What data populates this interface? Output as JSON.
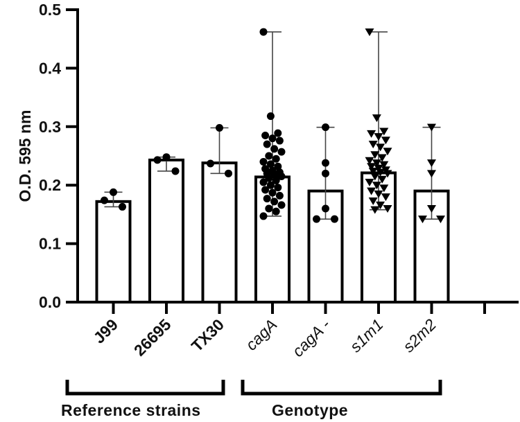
{
  "chart_data": {
    "type": "bar",
    "title": "",
    "xlabel": "",
    "ylabel": "O.D. 595 nm",
    "ylim": [
      0,
      0.5
    ],
    "yticks": [
      "0.0",
      "0.1",
      "0.2",
      "0.3",
      "0.4",
      "0.5"
    ],
    "grid": false,
    "legend": null,
    "error_bars": "range (min–max)",
    "categories": [
      "J99",
      "26695",
      "TX30",
      "cagA",
      "cagA -",
      "s1m1",
      "s2m2"
    ],
    "category_styles": [
      "bold",
      "bold",
      "bold",
      "italic",
      "italic",
      "italic",
      "italic"
    ],
    "values": [
      0.172,
      0.243,
      0.238,
      0.214,
      0.19,
      0.221,
      0.19
    ],
    "markers": [
      "circle",
      "circle",
      "circle",
      "circle",
      "circle",
      "triangle-down",
      "triangle-down"
    ],
    "points": [
      [
        0.188,
        0.174,
        0.163
      ],
      [
        0.248,
        0.243,
        0.224
      ],
      [
        0.298,
        0.237,
        0.22
      ],
      [
        0.462,
        0.318,
        0.289,
        0.285,
        0.28,
        0.276,
        0.27,
        0.262,
        0.257,
        0.25,
        0.245,
        0.24,
        0.236,
        0.232,
        0.228,
        0.225,
        0.222,
        0.22,
        0.218,
        0.215,
        0.212,
        0.208,
        0.205,
        0.2,
        0.196,
        0.192,
        0.187,
        0.182,
        0.177,
        0.172,
        0.166,
        0.16,
        0.155,
        0.147
      ],
      [
        0.299,
        0.238,
        0.22,
        0.16,
        0.142,
        0.142
      ],
      [
        0.462,
        0.315,
        0.292,
        0.288,
        0.283,
        0.277,
        0.27,
        0.265,
        0.258,
        0.252,
        0.247,
        0.242,
        0.238,
        0.235,
        0.232,
        0.229,
        0.226,
        0.224,
        0.222,
        0.22,
        0.215,
        0.21,
        0.205,
        0.2,
        0.195,
        0.19,
        0.185,
        0.18,
        0.173,
        0.166,
        0.16,
        0.158
      ],
      [
        0.299,
        0.238,
        0.22,
        0.16,
        0.142,
        0.142
      ]
    ],
    "groups": [
      {
        "label": "Reference strains",
        "categories": [
          "J99",
          "26695",
          "TX30"
        ]
      },
      {
        "label": "Genotype",
        "categories": [
          "cagA",
          "cagA -",
          "s1m1",
          "s2m2"
        ]
      }
    ],
    "extra_empty_slot": true
  }
}
